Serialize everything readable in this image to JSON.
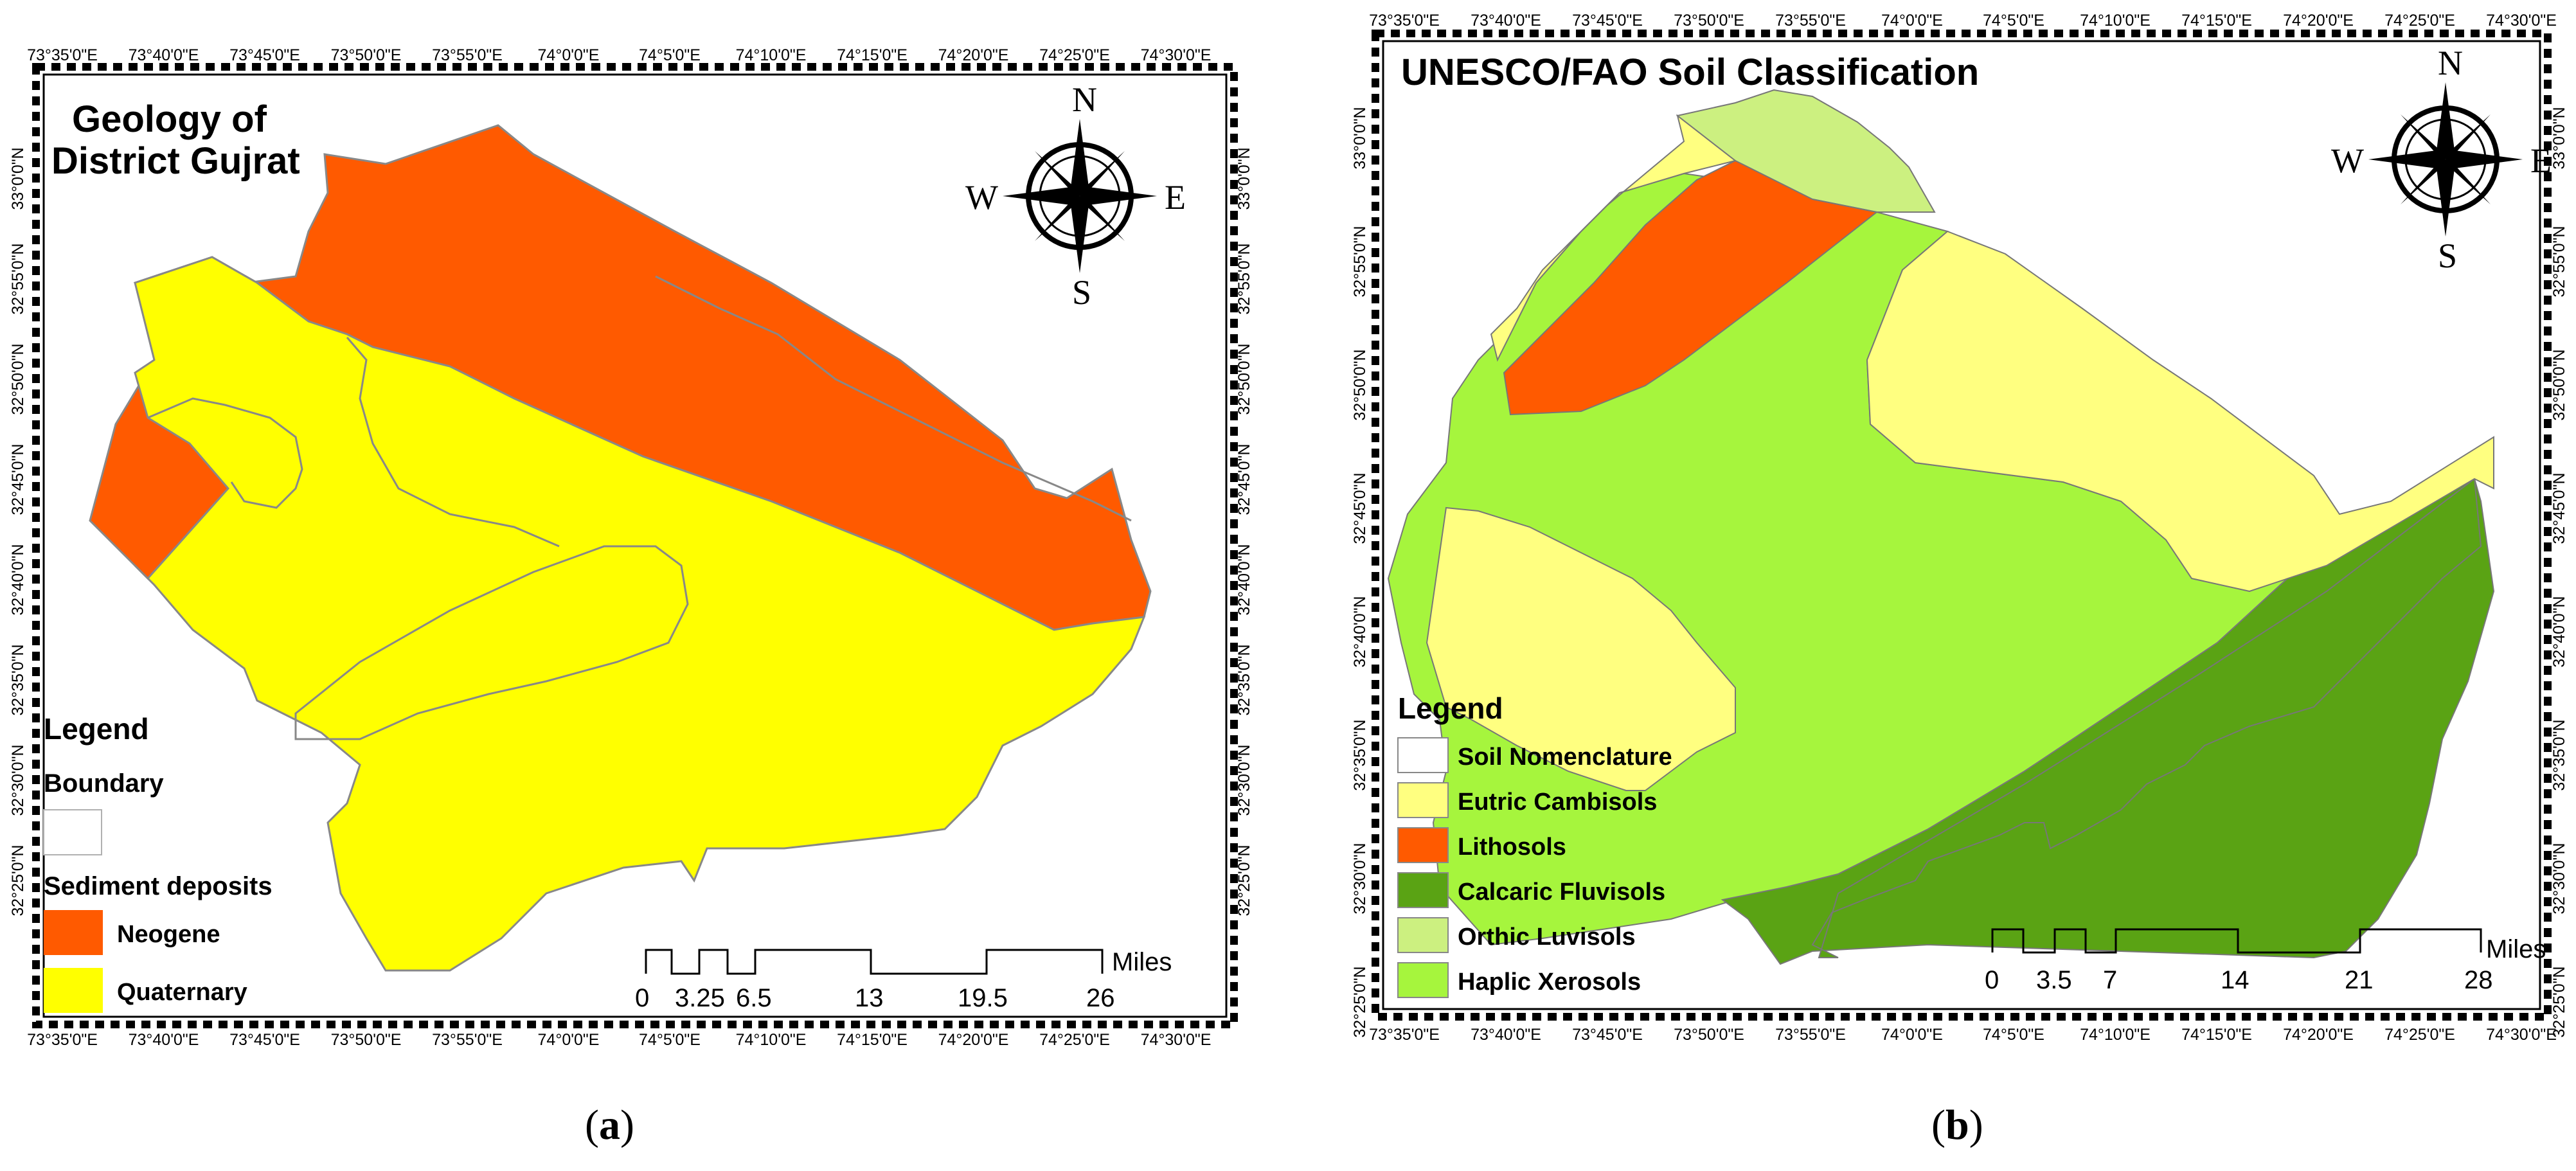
{
  "panel_a": {
    "title_line1": "Geology of",
    "title_line2": "District Gujrat",
    "top_labels": [
      "73°35'0\"E",
      "73°40'0\"E",
      "73°45'0\"E",
      "73°50'0\"E",
      "73°55'0\"E",
      "74°0'0\"E",
      "74°5'0\"E",
      "74°10'0\"E",
      "74°15'0\"E",
      "74°20'0\"E",
      "74°25'0\"E",
      "74°30'0\"E"
    ],
    "bottom_labels": [
      "73°35'0\"E",
      "73°40'0\"E",
      "73°45'0\"E",
      "73°50'0\"E",
      "73°55'0\"E",
      "74°0'0\"E",
      "74°5'0\"E",
      "74°10'0\"E",
      "74°15'0\"E",
      "74°20'0\"E",
      "74°25'0\"E",
      "74°30'0\"E"
    ],
    "left_labels": [
      "33°0'0\"N",
      "32°55'0\"N",
      "32°50'0\"N",
      "32°45'0\"N",
      "32°40'0\"N",
      "32°35'0\"N",
      "32°30'0\"N",
      "32°25'0\"N"
    ],
    "right_labels": [
      "33°0'0\"N",
      "32°55'0\"N",
      "32°50'0\"N",
      "32°45'0\"N",
      "32°40'0\"N",
      "32°35'0\"N",
      "32°30'0\"N",
      "32°25'0\"N"
    ],
    "legend_title": "Legend",
    "boundary_label": "Boundary",
    "sediment_label": "Sediment deposits",
    "legend_items": [
      {
        "label": "Neogene",
        "color": "#ff5a00"
      },
      {
        "label": "Quaternary",
        "color": "#ffff00"
      }
    ],
    "scale_labels": [
      "0",
      "3.25",
      "6.5",
      "13",
      "19.5",
      "26"
    ],
    "scale_unit": "Miles",
    "compass": {
      "n": "N",
      "s": "S",
      "e": "E",
      "w": "W"
    },
    "caption_open": "(",
    "caption_letter": "a",
    "caption_close": ")"
  },
  "panel_b": {
    "title": "UNESCO/FAO Soil Classification",
    "top_labels": [
      "73°35'0\"E",
      "73°40'0\"E",
      "73°45'0\"E",
      "73°50'0\"E",
      "73°55'0\"E",
      "74°0'0\"E",
      "74°5'0\"E",
      "74°10'0\"E",
      "74°15'0\"E",
      "74°20'0\"E",
      "74°25'0\"E",
      "74°30'0\"E"
    ],
    "bottom_labels": [
      "73°35'0\"E",
      "73°40'0\"E",
      "73°45'0\"E",
      "73°50'0\"E",
      "73°55'0\"E",
      "74°0'0\"E",
      "74°5'0\"E",
      "74°10'0\"E",
      "74°15'0\"E",
      "74°20'0\"E",
      "74°25'0\"E",
      "74°30'0\"E"
    ],
    "left_labels": [
      "33°0'0\"N",
      "32°55'0\"N",
      "32°50'0\"N",
      "32°45'0\"N",
      "32°40'0\"N",
      "32°35'0\"N",
      "32°30'0\"N",
      "32°25'0\"N"
    ],
    "right_labels": [
      "33°0'0\"N",
      "32°55'0\"N",
      "32°50'0\"N",
      "32°45'0\"N",
      "32°40'0\"N",
      "32°35'0\"N",
      "32°30'0\"N",
      "32°25'0\"N"
    ],
    "legend_title": "Legend",
    "legend_items": [
      {
        "label": "Soil Nomenclature",
        "color": "#ffffff"
      },
      {
        "label": "Eutric Cambisols",
        "color": "#ffff80"
      },
      {
        "label": "Lithosols",
        "color": "#ff5a00"
      },
      {
        "label": "Calcaric Fluvisols",
        "color": "#5aa314"
      },
      {
        "label": "Orthic Luvisols",
        "color": "#ccf080"
      },
      {
        "label": "Haplic Xerosols",
        "color": "#a6f53d"
      }
    ],
    "scale_labels": [
      "0",
      "3.5",
      "7",
      "14",
      "21",
      "28"
    ],
    "scale_unit": "Miles",
    "compass": {
      "n": "N",
      "s": "S",
      "e": "E",
      "w": "W"
    },
    "caption_open": "(",
    "caption_letter": "b",
    "caption_close": ")"
  }
}
